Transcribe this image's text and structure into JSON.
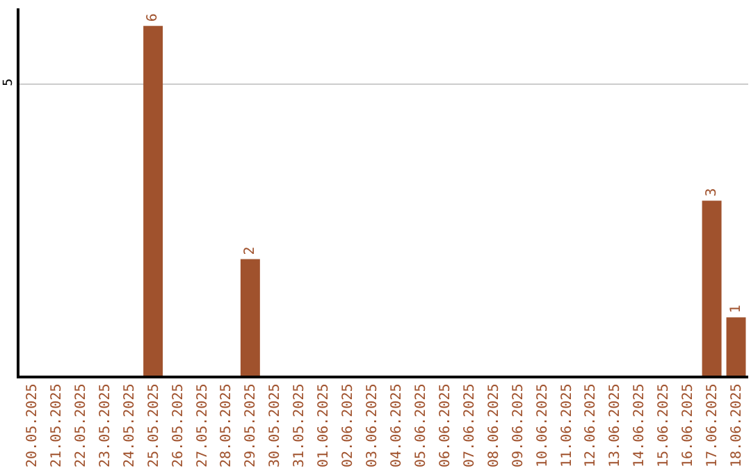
{
  "chart_data": {
    "type": "bar",
    "categories": [
      "20.05.2025",
      "21.05.2025",
      "22.05.2025",
      "23.05.2025",
      "24.05.2025",
      "25.05.2025",
      "26.05.2025",
      "27.05.2025",
      "28.05.2025",
      "29.05.2025",
      "30.05.2025",
      "31.05.2025",
      "01.06.2025",
      "02.06.2025",
      "03.06.2025",
      "04.06.2025",
      "05.06.2025",
      "06.06.2025",
      "07.06.2025",
      "08.06.2025",
      "09.06.2025",
      "10.06.2025",
      "11.06.2025",
      "12.06.2025",
      "13.06.2025",
      "14.06.2025",
      "15.06.2025",
      "16.06.2025",
      "17.06.2025",
      "18.06.2025"
    ],
    "values": [
      0,
      0,
      0,
      0,
      0,
      6,
      0,
      0,
      0,
      2,
      0,
      0,
      0,
      0,
      0,
      0,
      0,
      0,
      0,
      0,
      0,
      0,
      0,
      0,
      0,
      0,
      0,
      0,
      3,
      1
    ],
    "value_labels": [
      null,
      null,
      null,
      null,
      null,
      "6",
      null,
      null,
      null,
      "2",
      null,
      null,
      null,
      null,
      null,
      null,
      null,
      null,
      null,
      null,
      null,
      null,
      null,
      null,
      null,
      null,
      null,
      null,
      "3",
      "1"
    ],
    "color": "#a0522d",
    "ylim": [
      0,
      6.3
    ],
    "yticks": [
      5
    ],
    "grid": "y",
    "legend": false
  }
}
